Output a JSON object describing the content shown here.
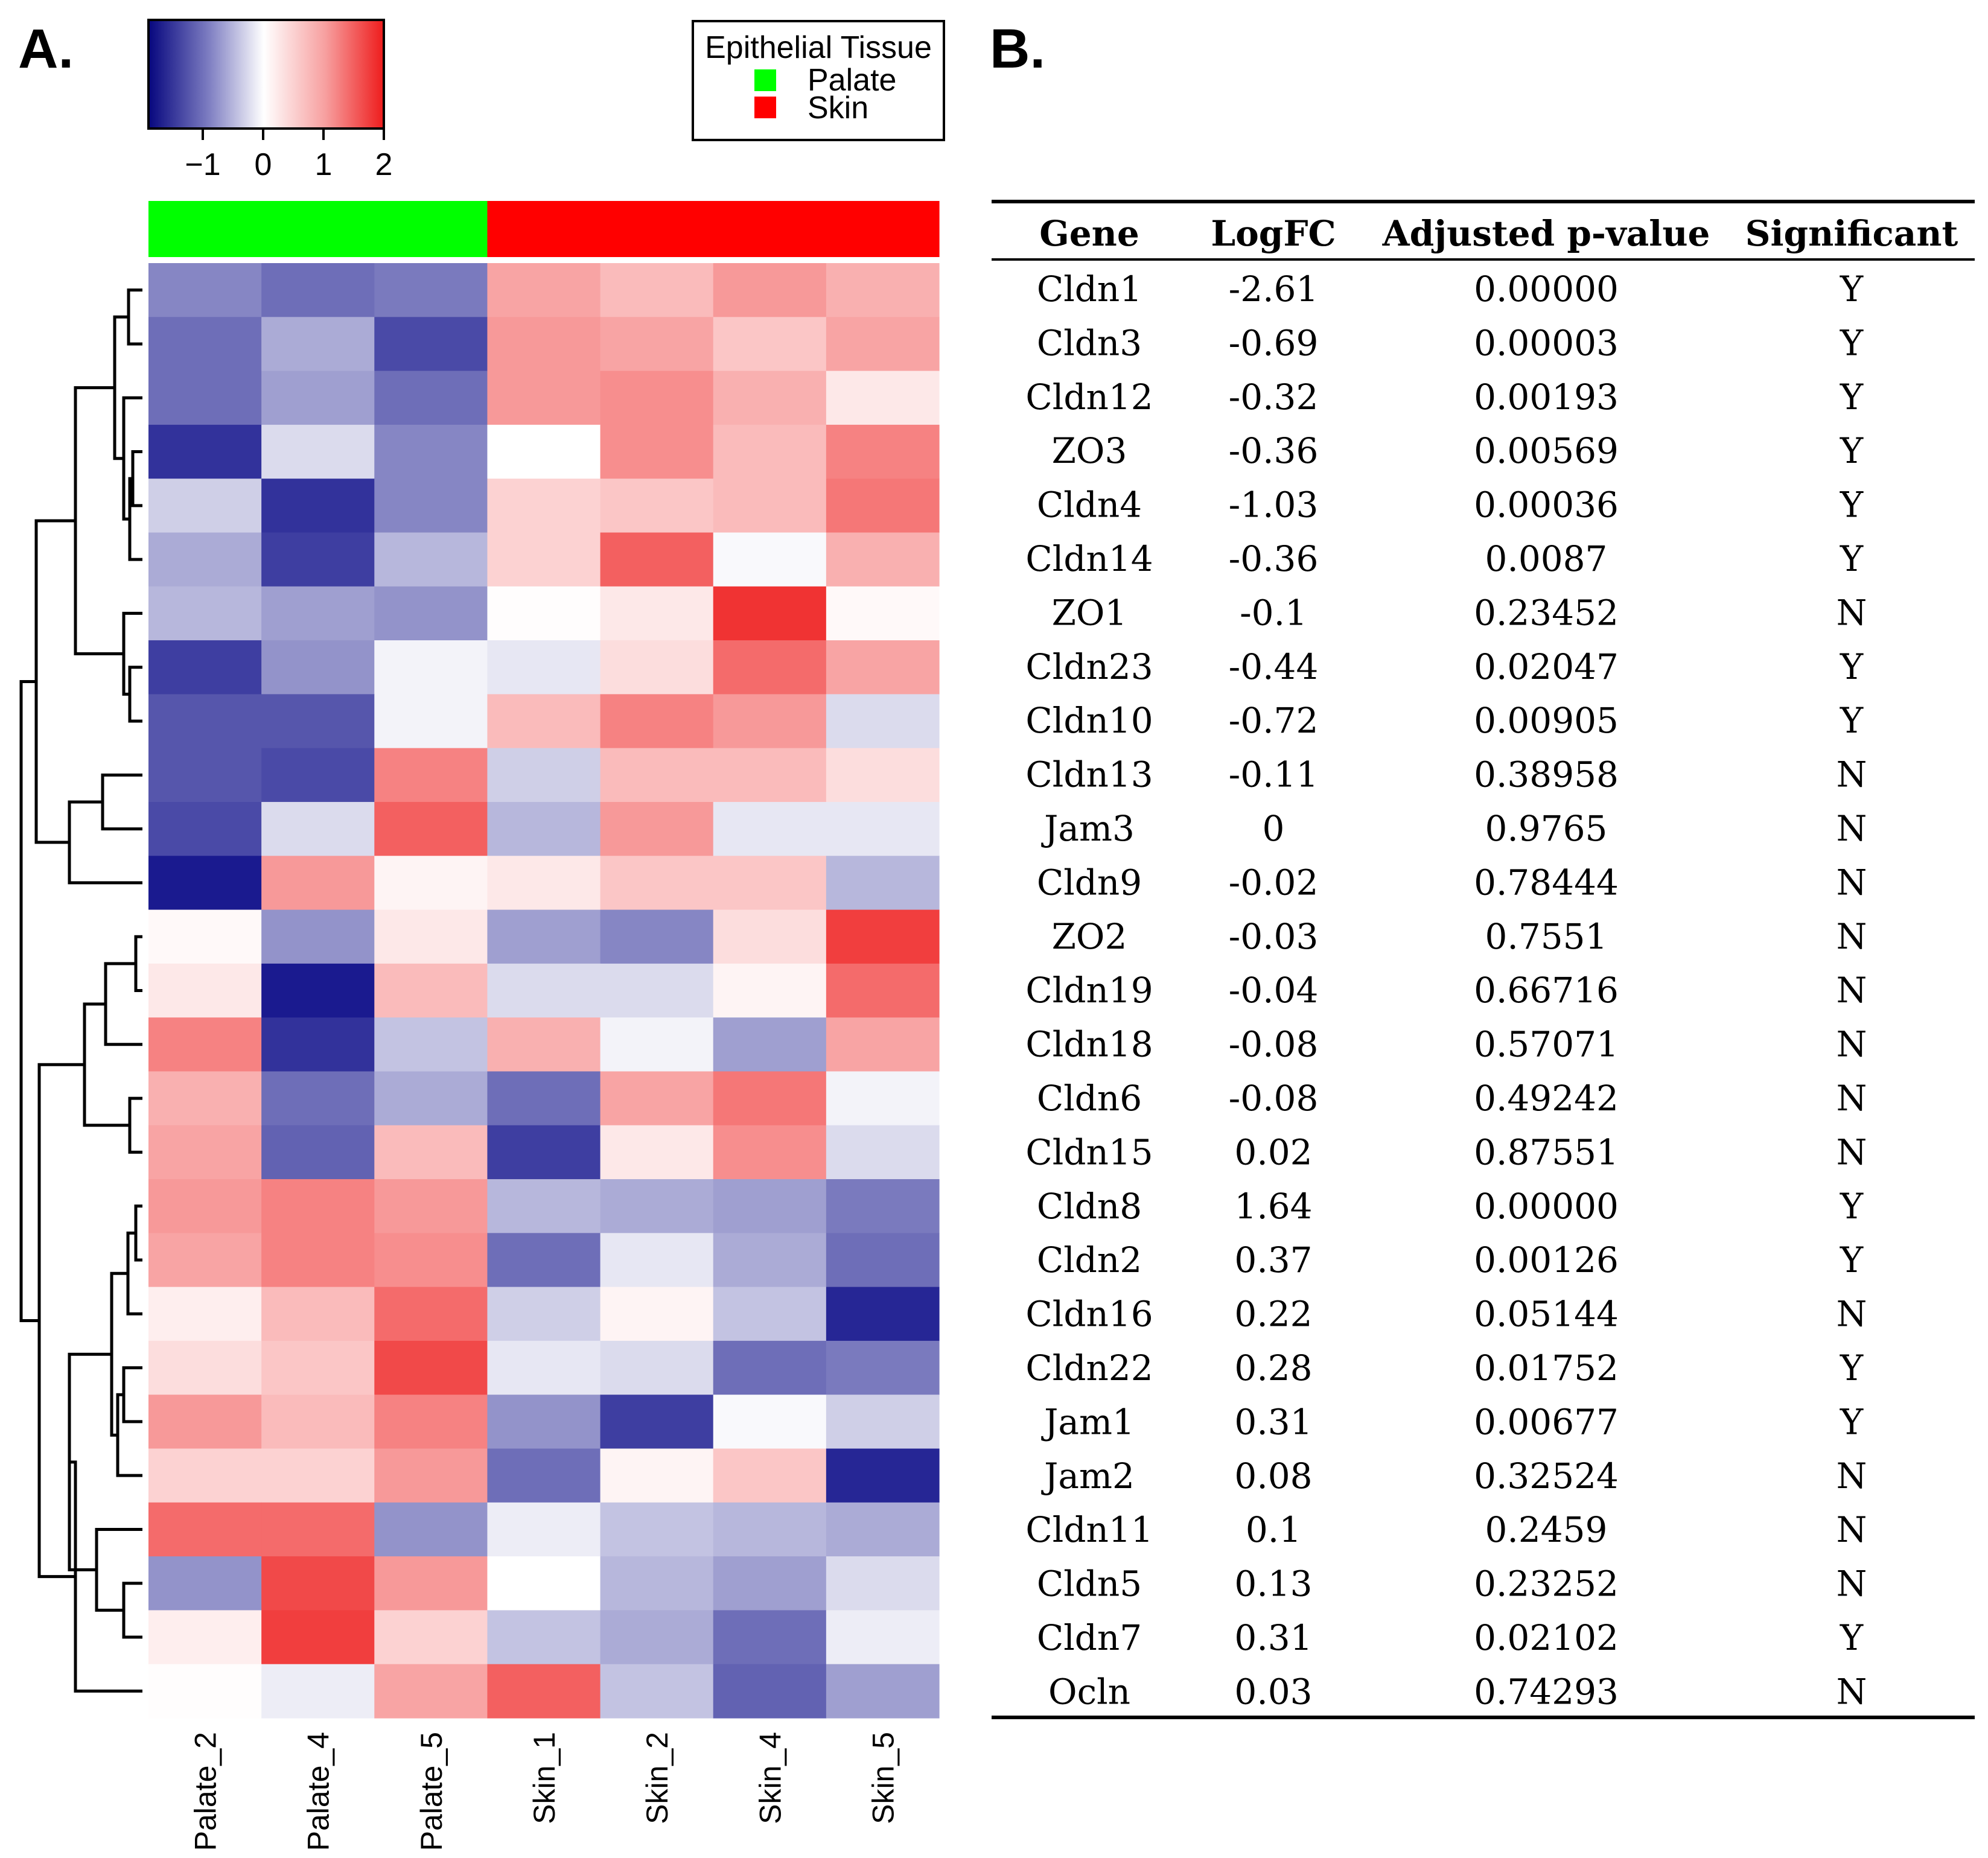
{
  "panel_labels": {
    "a": "A.",
    "b": "B."
  },
  "colors": {
    "low": "#1a1a8f",
    "mid": "#ffffff",
    "high": "#ee1c1c",
    "palate": "#00ff00",
    "skin": "#ff0000"
  },
  "color_key": {
    "ticks": [
      "−1",
      "0",
      "1",
      "2"
    ],
    "tick_values": [
      -1,
      0,
      1,
      2
    ],
    "range": [
      -1.9,
      2.0
    ]
  },
  "legend": {
    "title": "Epithelial Tissue",
    "entries": [
      {
        "label": "Palate",
        "color": "#00ff00"
      },
      {
        "label": "Skin",
        "color": "#ff0000"
      }
    ]
  },
  "chart_data": {
    "type": "heatmap",
    "title": "",
    "columns": [
      "Palate_2",
      "Palate_4",
      "Palate_5",
      "Skin_1",
      "Skin_2",
      "Skin_4",
      "Skin_5"
    ],
    "column_groups": [
      "Palate",
      "Palate",
      "Palate",
      "Skin",
      "Skin",
      "Skin",
      "Skin"
    ],
    "rows": [
      "Cldn1",
      "Cldn3",
      "Cldn12",
      "ZO3",
      "Cldn4",
      "Cldn14",
      "ZO1",
      "Cldn23",
      "Cldn10",
      "Cldn13",
      "Jam3",
      "Cldn9",
      "ZO2",
      "Cldn19",
      "Cldn18",
      "Cldn6",
      "Cldn15",
      "Cldn8",
      "Cldn2",
      "Cldn16",
      "Cldn22",
      "Jam1",
      "Jam2",
      "Cldn11",
      "Cldn5",
      "Cldn7",
      "Ocln"
    ],
    "values": [
      [
        -1.0,
        -1.2,
        -1.1,
        0.8,
        0.6,
        0.9,
        0.7
      ],
      [
        -1.2,
        -0.7,
        -1.5,
        0.9,
        0.8,
        0.5,
        0.8
      ],
      [
        -1.2,
        -0.8,
        -1.2,
        0.9,
        1.0,
        0.7,
        0.2
      ],
      [
        -1.7,
        -0.3,
        -1.0,
        0.0,
        1.0,
        0.6,
        1.1
      ],
      [
        -0.4,
        -1.7,
        -1.0,
        0.4,
        0.5,
        0.6,
        1.2
      ],
      [
        -0.7,
        -1.6,
        -0.6,
        0.4,
        1.4,
        -0.05,
        0.7
      ],
      [
        -0.6,
        -0.8,
        -0.9,
        0.02,
        0.2,
        1.8,
        0.05
      ],
      [
        -1.6,
        -0.9,
        -0.1,
        -0.2,
        0.3,
        1.3,
        0.8
      ],
      [
        -1.4,
        -1.4,
        -0.1,
        0.6,
        1.1,
        0.9,
        -0.3
      ],
      [
        -1.4,
        -1.5,
        1.1,
        -0.4,
        0.6,
        0.6,
        0.3
      ],
      [
        -1.5,
        -0.3,
        1.4,
        -0.6,
        0.9,
        -0.2,
        -0.2
      ],
      [
        -1.9,
        0.9,
        0.1,
        0.2,
        0.5,
        0.5,
        -0.6
      ],
      [
        0.05,
        -0.9,
        0.2,
        -0.8,
        -1.0,
        0.3,
        1.7
      ],
      [
        0.2,
        -1.9,
        0.6,
        -0.3,
        -0.3,
        0.1,
        1.3
      ],
      [
        1.1,
        -1.7,
        -0.5,
        0.7,
        -0.1,
        -0.8,
        0.8
      ],
      [
        0.7,
        -1.2,
        -0.7,
        -1.2,
        0.8,
        1.2,
        -0.1
      ],
      [
        0.8,
        -1.3,
        0.6,
        -1.6,
        0.2,
        1.0,
        -0.3
      ],
      [
        0.9,
        1.1,
        0.9,
        -0.6,
        -0.7,
        -0.8,
        -1.1
      ],
      [
        0.8,
        1.1,
        1.0,
        -1.2,
        -0.2,
        -0.7,
        -1.2
      ],
      [
        0.15,
        0.6,
        1.3,
        -0.4,
        0.1,
        -0.5,
        -1.8
      ],
      [
        0.3,
        0.5,
        1.6,
        -0.2,
        -0.3,
        -1.2,
        -1.1
      ],
      [
        0.9,
        0.6,
        1.1,
        -0.9,
        -1.6,
        -0.05,
        -0.4
      ],
      [
        0.4,
        0.4,
        0.9,
        -1.2,
        0.1,
        0.5,
        -1.8
      ],
      [
        1.3,
        1.3,
        -0.9,
        -0.15,
        -0.5,
        -0.6,
        -0.7
      ],
      [
        -0.9,
        1.6,
        0.9,
        0.0,
        -0.6,
        -0.8,
        -0.3
      ],
      [
        0.15,
        1.7,
        0.4,
        -0.5,
        -0.7,
        -1.2,
        -0.15
      ],
      [
        0.02,
        -0.15,
        0.8,
        1.4,
        -0.5,
        -1.3,
        -0.8
      ]
    ],
    "color_scale": {
      "min": -1.9,
      "max": 2.0
    },
    "dendrogram": "rows"
  },
  "table": {
    "headers": [
      "Gene",
      "LogFC",
      "Adjusted p-value",
      "Significant"
    ],
    "rows": [
      [
        "Cldn1",
        "-2.61",
        "0.00000",
        "Y"
      ],
      [
        "Cldn3",
        "-0.69",
        "0.00003",
        "Y"
      ],
      [
        "Cldn12",
        "-0.32",
        "0.00193",
        "Y"
      ],
      [
        "ZO3",
        "-0.36",
        "0.00569",
        "Y"
      ],
      [
        "Cldn4",
        "-1.03",
        "0.00036",
        "Y"
      ],
      [
        "Cldn14",
        "-0.36",
        "0.0087",
        "Y"
      ],
      [
        "ZO1",
        "-0.1",
        "0.23452",
        "N"
      ],
      [
        "Cldn23",
        "-0.44",
        "0.02047",
        "Y"
      ],
      [
        "Cldn10",
        "-0.72",
        "0.00905",
        "Y"
      ],
      [
        "Cldn13",
        "-0.11",
        "0.38958",
        "N"
      ],
      [
        "Jam3",
        "0",
        "0.9765",
        "N"
      ],
      [
        "Cldn9",
        "-0.02",
        "0.78444",
        "N"
      ],
      [
        "ZO2",
        "-0.03",
        "0.7551",
        "N"
      ],
      [
        "Cldn19",
        "-0.04",
        "0.66716",
        "N"
      ],
      [
        "Cldn18",
        "-0.08",
        "0.57071",
        "N"
      ],
      [
        "Cldn6",
        "-0.08",
        "0.49242",
        "N"
      ],
      [
        "Cldn15",
        "0.02",
        "0.87551",
        "N"
      ],
      [
        "Cldn8",
        "1.64",
        "0.00000",
        "Y"
      ],
      [
        "Cldn2",
        "0.37",
        "0.00126",
        "Y"
      ],
      [
        "Cldn16",
        "0.22",
        "0.05144",
        "N"
      ],
      [
        "Cldn22",
        "0.28",
        "0.01752",
        "Y"
      ],
      [
        "Jam1",
        "0.31",
        "0.00677",
        "Y"
      ],
      [
        "Jam2",
        "0.08",
        "0.32524",
        "N"
      ],
      [
        "Cldn11",
        "0.1",
        "0.2459",
        "N"
      ],
      [
        "Cldn5",
        "0.13",
        "0.23252",
        "N"
      ],
      [
        "Cldn7",
        "0.31",
        "0.02102",
        "Y"
      ],
      [
        "Ocln",
        "0.03",
        "0.74293",
        "N"
      ]
    ]
  }
}
